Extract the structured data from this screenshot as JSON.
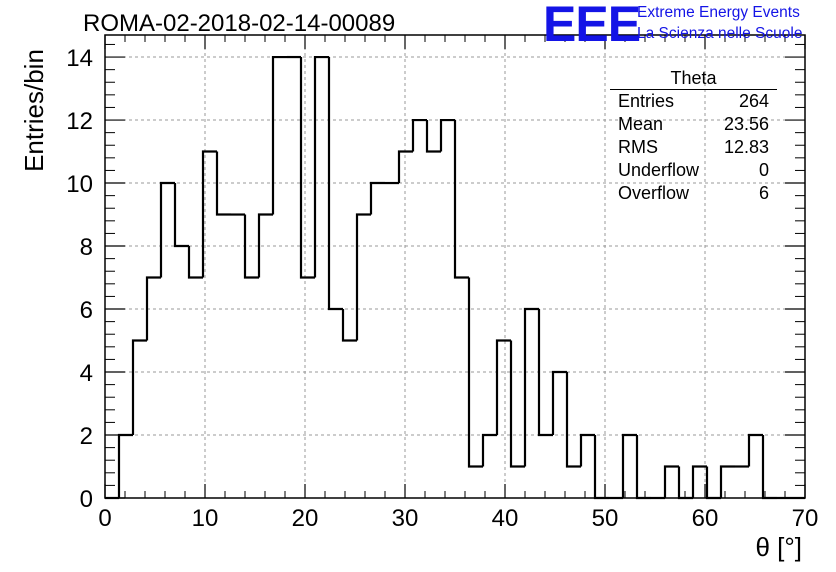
{
  "title": "ROMA-02-2018-02-14-00089",
  "logo": {
    "mark": "EEE",
    "line1": "Extreme Energy Events",
    "line2": "La Scienza nelle Scuole",
    "color": "#1414e6"
  },
  "stats_box": {
    "name": "Theta",
    "rows": [
      {
        "label": "Entries",
        "value": "264"
      },
      {
        "label": "Mean",
        "value": "23.56"
      },
      {
        "label": "RMS",
        "value": "12.83"
      },
      {
        "label": "Underflow",
        "value": "0"
      },
      {
        "label": "Overflow",
        "value": "6"
      }
    ]
  },
  "chart_data": {
    "type": "histogram",
    "title": "ROMA-02-2018-02-14-00089",
    "xlabel": "θ [°]",
    "ylabel": "Entries/bin",
    "xlim": [
      0,
      70
    ],
    "ylim": [
      0,
      14.7
    ],
    "grid": true,
    "bin_width": 1.4,
    "x_ticks": [
      0,
      10,
      20,
      30,
      40,
      50,
      60,
      70
    ],
    "y_ticks": [
      0,
      2,
      4,
      6,
      8,
      10,
      12,
      14
    ],
    "bin_edges": [
      0,
      1.4,
      2.8,
      4.2,
      5.6,
      7,
      8.4,
      9.8,
      11.2,
      12.6,
      14,
      15.4,
      16.8,
      18.2,
      19.6,
      21,
      22.4,
      23.8,
      25.2,
      26.6,
      28,
      29.4,
      30.8,
      32.2,
      33.6,
      35,
      36.4,
      37.8,
      39.2,
      40.6,
      42,
      43.4,
      44.8,
      46.2,
      47.6,
      49,
      50.4,
      51.8,
      53.2,
      54.6,
      56,
      57.4,
      58.8,
      60.2,
      61.6,
      63,
      64.4,
      65.8,
      67.2,
      68.6,
      70
    ],
    "values": [
      0,
      2,
      5,
      7,
      10,
      8,
      7,
      11,
      9,
      9,
      7,
      9,
      14,
      14,
      7,
      14,
      6,
      5,
      9,
      10,
      10,
      11,
      12,
      11,
      12,
      7,
      1,
      2,
      5,
      1,
      6,
      2,
      4,
      1,
      2,
      0,
      0,
      2,
      0,
      0,
      1,
      0,
      1,
      0,
      1,
      1,
      2,
      0,
      0,
      0
    ],
    "line_color": "#000000",
    "stats": {
      "name": "Theta",
      "entries": 264,
      "mean": 23.56,
      "rms": 12.83,
      "underflow": 0,
      "overflow": 6
    }
  }
}
